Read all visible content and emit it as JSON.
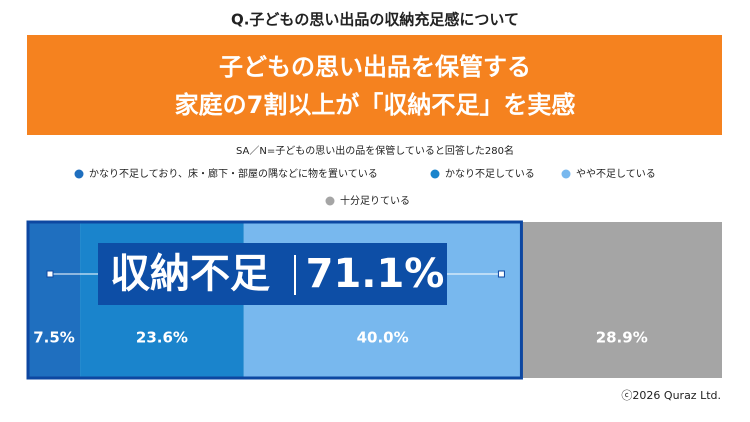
{
  "chart_data": {
    "type": "stacked-bar",
    "title": "Q.子どもの思い出品の収納充足感について",
    "headline": [
      "子どもの思い出品を保管する",
      "家庭の7割以上が「収納不足」を実感"
    ],
    "subtitle": "SA／N=子どもの思い出の品を保管していると回答した280名",
    "bracket_label": "収納不足",
    "bracket_value": "71.1%",
    "xlim": [
      0,
      100
    ],
    "series": [
      {
        "name": "かなり不足しており、床・廊下・部屋の隅などに物を置いている",
        "color": "#1f6fbf",
        "values": [
          7.5
        ],
        "value_labels": [
          "7.5%"
        ]
      },
      {
        "name": "かなり不足している",
        "color": "#1a84cc",
        "values": [
          23.6
        ],
        "value_labels": [
          "23.6%"
        ]
      },
      {
        "name": "やや不足している",
        "color": "#78b8ee",
        "values": [
          40.0
        ],
        "value_labels": [
          "40.0%"
        ]
      },
      {
        "name": "十分足りている",
        "color": "#a5a5a5",
        "values": [
          28.9
        ],
        "value_labels": [
          "28.9%"
        ]
      }
    ],
    "footer": "ⓒ2026 Quraz Ltd."
  }
}
